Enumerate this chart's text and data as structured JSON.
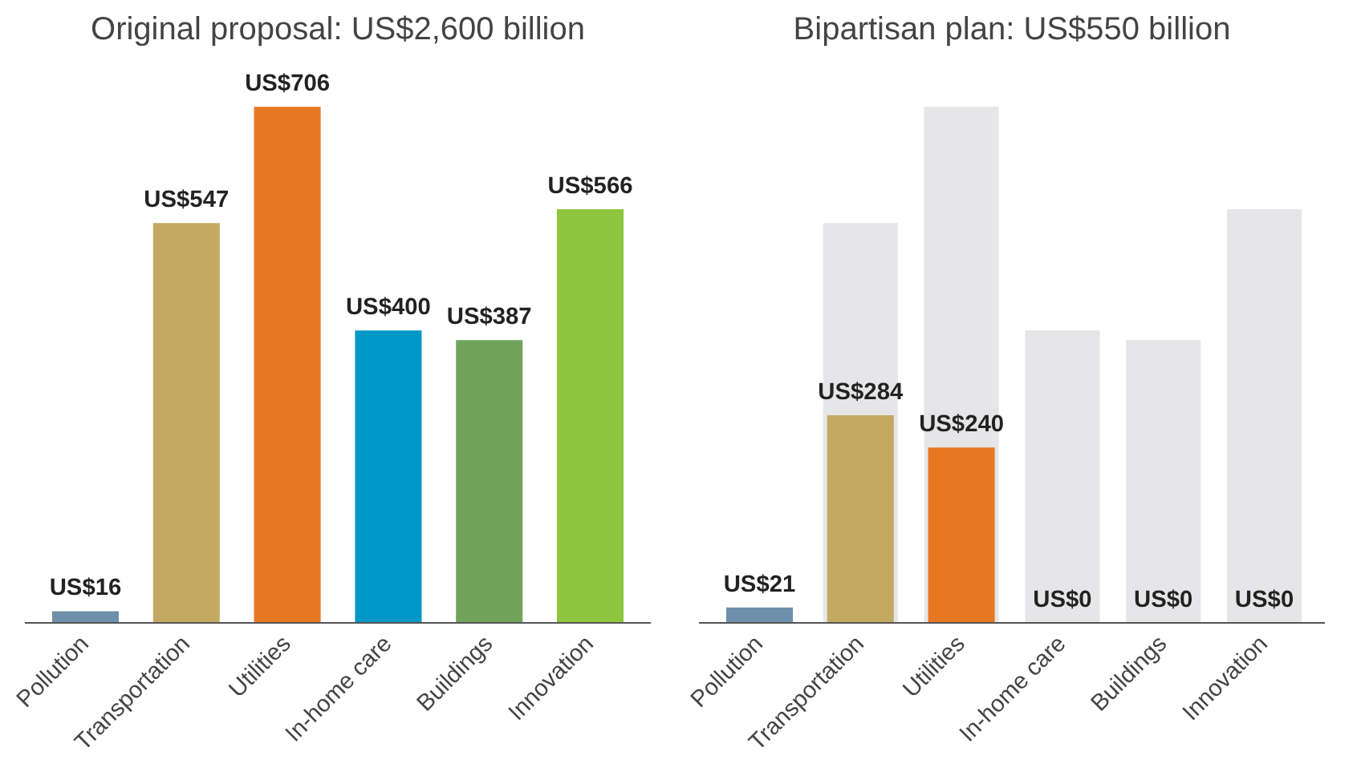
{
  "chart_data": [
    {
      "type": "bar",
      "title": "Original proposal: US$2,600 billion",
      "categories": [
        "Pollution",
        "Transportation",
        "Utilities",
        "In-home care",
        "Buildings",
        "Innovation"
      ],
      "series": [
        {
          "colors": [
            "#6e8fab",
            "#c4a962",
            "#e87722",
            "#0096c8",
            "#72a35a",
            "#8cc63f"
          ],
          "values": [
            16,
            547,
            706,
            400,
            387,
            566
          ],
          "value_labels": [
            "US$16",
            "US$547",
            "US$706",
            "US$400",
            "US$387",
            "US$566"
          ]
        }
      ],
      "grid": false
    },
    {
      "type": "bar",
      "title": "Bipartisan plan: US$550 billion",
      "categories": [
        "Pollution",
        "Transportation",
        "Utilities",
        "In-home care",
        "Buildings",
        "Innovation"
      ],
      "series": [
        {
          "color": "#e6e6e8",
          "values": [
            null,
            547,
            706,
            400,
            387,
            566
          ]
        },
        {
          "colors": [
            "#6e8fab",
            "#c4a962",
            "#e87722",
            "#0096c8",
            "#72a35a",
            "#8cc63f"
          ],
          "values": [
            21,
            284,
            240,
            0,
            0,
            0
          ],
          "value_labels": [
            "US$21",
            "US$284",
            "US$240",
            "US$0",
            "US$0",
            "US$0"
          ]
        }
      ],
      "grid": false
    }
  ]
}
